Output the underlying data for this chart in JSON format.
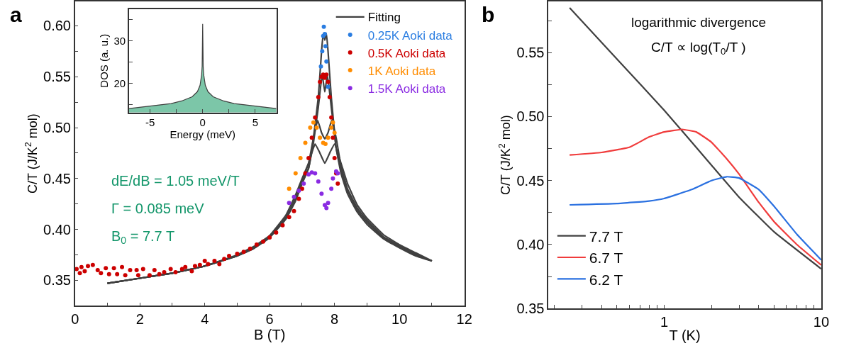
{
  "chart_data": [
    {
      "type": "scatter",
      "xlabel": "B (T)",
      "ylabel": "C/T (J/K$^{2}$ mol)",
      "annotations": [
        "a",
        "dE/dB = 1.05 meV/T",
        "Γ = 0.085 meV",
        "B$_{0}$ = 7.7 T"
      ],
      "xlim": [
        0,
        12
      ],
      "xticks": [
        0,
        {
          "value": 1,
          "label": null
        },
        2,
        {
          "value": 3,
          "label": null
        },
        4,
        {
          "value": 5,
          "label": null
        },
        6,
        {
          "value": 7,
          "label": null
        },
        8,
        {
          "value": 9,
          "label": null
        },
        10,
        {
          "value": 11,
          "label": null
        },
        12
      ],
      "ylim": [
        0.325,
        0.624
      ],
      "yticks": [
        {
          "value": 0.35,
          "label": "0.35"
        },
        {
          "value": 0.375,
          "label": null
        },
        {
          "value": 0.4,
          "label": "0.40"
        },
        {
          "value": 0.425,
          "label": null
        },
        {
          "value": 0.45,
          "label": "0.45"
        },
        {
          "value": 0.475,
          "label": null
        },
        {
          "value": 0.5,
          "label": "0.50"
        },
        {
          "value": 0.525,
          "label": null
        },
        {
          "value": 0.55,
          "label": "0.55"
        },
        {
          "value": 0.575,
          "label": null
        },
        {
          "value": 0.6,
          "label": "0.60"
        }
      ],
      "legend": "top right",
      "series": [
        {
          "name": "Fitting",
          "type": "line",
          "color": "#404040",
          "x": [
            1,
            2,
            3,
            4,
            5,
            5.5,
            6,
            6.5,
            6.8,
            7.0,
            7.2,
            7.35,
            7.5,
            7.6,
            7.65,
            7.7,
            7.75,
            7.8,
            7.9,
            8.05,
            8.2,
            8.4,
            8.7,
            9,
            9.5,
            10,
            10.5,
            11
          ],
          "values": [
            0.347,
            0.352,
            0.357,
            0.364,
            0.374,
            0.381,
            0.392,
            0.41,
            0.428,
            0.445,
            0.46,
            0.49,
            0.53,
            0.575,
            0.5925,
            0.586,
            0.5925,
            0.575,
            0.53,
            0.48,
            0.455,
            0.435,
            0.417,
            0.405,
            0.391,
            0.382,
            0.374,
            0.369
          ]
        },
        {
          "type": "line",
          "color": "#404040",
          "x": [
            1,
            2,
            3,
            4,
            5,
            5.5,
            6,
            6.5,
            6.8,
            7.0,
            7.2,
            7.35,
            7.5,
            7.62,
            7.7,
            7.78,
            7.9,
            8.05,
            8.2,
            8.4,
            8.7,
            9,
            9.5,
            10,
            10.5,
            11
          ],
          "values": [
            0.347,
            0.352,
            0.357,
            0.364,
            0.374,
            0.381,
            0.392,
            0.411,
            0.429,
            0.446,
            0.46,
            0.485,
            0.52,
            0.552,
            0.535,
            0.552,
            0.52,
            0.48,
            0.458,
            0.438,
            0.419,
            0.407,
            0.392,
            0.383,
            0.375,
            0.369
          ]
        },
        {
          "type": "line",
          "color": "#404040",
          "x": [
            1,
            2,
            3,
            4,
            5,
            5.5,
            6,
            6.5,
            6.8,
            7.0,
            7.2,
            7.35,
            7.48,
            7.6,
            7.7,
            7.8,
            7.91,
            8.05,
            8.2,
            8.4,
            8.7,
            9,
            9.5,
            10,
            10.5,
            11
          ],
          "values": [
            0.347,
            0.352,
            0.357,
            0.364,
            0.374,
            0.382,
            0.393,
            0.412,
            0.431,
            0.448,
            0.465,
            0.49,
            0.507,
            0.495,
            0.489,
            0.495,
            0.507,
            0.49,
            0.462,
            0.44,
            0.421,
            0.409,
            0.393,
            0.384,
            0.376,
            0.369
          ]
        },
        {
          "type": "line",
          "color": "#404040",
          "x": [
            1,
            2,
            3,
            4,
            5,
            5.5,
            6,
            6.5,
            6.8,
            7.0,
            7.2,
            7.4,
            7.55,
            7.7,
            7.85,
            8.0,
            8.2,
            8.4,
            8.7,
            9,
            9.5,
            10,
            10.5,
            11
          ],
          "values": [
            0.347,
            0.352,
            0.357,
            0.364,
            0.375,
            0.383,
            0.394,
            0.414,
            0.434,
            0.45,
            0.465,
            0.484,
            0.475,
            0.465,
            0.475,
            0.484,
            0.465,
            0.445,
            0.424,
            0.411,
            0.395,
            0.385,
            0.377,
            0.369
          ]
        },
        {
          "name": "0.25K Aoki data",
          "type": "scatter",
          "marker": "circle",
          "color": "#2a7de1",
          "x": [
            7.58,
            7.62,
            7.65,
            7.67,
            7.7,
            7.72,
            7.75,
            7.8
          ],
          "values": [
            0.56,
            0.575,
            0.59,
            0.599,
            0.592,
            0.58,
            0.565,
            0.54
          ]
        },
        {
          "name": "0.5K Aoki data",
          "type": "scatter",
          "marker": "circle",
          "color": "#cc0000",
          "x": [
            0.05,
            0.15,
            0.2,
            0.3,
            0.4,
            0.55,
            0.7,
            0.8,
            0.95,
            1.05,
            1.2,
            1.3,
            1.45,
            1.55,
            1.7,
            1.9,
            1.95,
            2.1,
            2.3,
            2.45,
            2.6,
            2.75,
            2.95,
            3.1,
            3.3,
            3.4,
            3.6,
            3.7,
            3.85,
            4.0,
            4.1,
            4.3,
            4.45,
            4.6,
            4.75,
            5.0,
            5.2,
            5.4,
            5.6,
            5.8,
            6.0,
            6.2,
            6.4,
            6.6,
            6.75,
            6.9,
            7.0,
            7.1,
            7.2,
            7.3,
            7.4,
            7.5,
            7.55,
            7.6,
            7.65,
            7.7,
            7.75,
            7.8,
            7.85,
            7.9,
            7.95,
            8.0,
            8.05,
            8.1
          ],
          "values": [
            0.361,
            0.357,
            0.363,
            0.359,
            0.364,
            0.365,
            0.36,
            0.357,
            0.362,
            0.356,
            0.362,
            0.356,
            0.363,
            0.355,
            0.36,
            0.36,
            0.355,
            0.361,
            0.355,
            0.36,
            0.356,
            0.358,
            0.361,
            0.358,
            0.361,
            0.363,
            0.359,
            0.364,
            0.365,
            0.369,
            0.366,
            0.369,
            0.366,
            0.371,
            0.374,
            0.376,
            0.378,
            0.381,
            0.385,
            0.388,
            0.392,
            0.397,
            0.404,
            0.412,
            0.418,
            0.43,
            0.44,
            0.455,
            0.47,
            0.49,
            0.51,
            0.53,
            0.545,
            0.55,
            0.552,
            0.549,
            0.552,
            0.545,
            0.53,
            0.51,
            0.49,
            0.47,
            0.455,
            0.445
          ]
        },
        {
          "name": "1K Aoki data",
          "type": "scatter",
          "marker": "circle",
          "color": "#ff8c00",
          "x": [
            6.6,
            6.8,
            6.95,
            7.1,
            7.25,
            7.35,
            7.45,
            7.55,
            7.65,
            7.72,
            7.8,
            7.9,
            7.95,
            8.0
          ],
          "values": [
            0.44,
            0.455,
            0.47,
            0.485,
            0.5,
            0.505,
            0.5,
            0.49,
            0.485,
            0.484,
            0.49,
            0.5,
            0.505,
            0.495
          ]
        },
        {
          "name": "1.5K Aoki data",
          "type": "scatter",
          "marker": "circle",
          "color": "#8a2be2",
          "x": [
            6.6,
            6.75,
            6.9,
            7.05,
            7.2,
            7.3,
            7.4,
            7.5,
            7.6,
            7.7,
            7.75,
            7.8,
            7.9,
            7.95,
            8.05,
            8.1
          ],
          "values": [
            0.426,
            0.432,
            0.438,
            0.445,
            0.454,
            0.456,
            0.455,
            0.447,
            0.435,
            0.424,
            0.421,
            0.426,
            0.44,
            0.45,
            0.457,
            0.455
          ]
        }
      ]
    },
    {
      "type": "area",
      "xlabel": "Energy (meV)",
      "ylabel": "DOS (a. u.)",
      "xlim": [
        -7,
        7
      ],
      "xticks": [
        -5,
        {
          "value": -2.5,
          "label": null
        },
        0,
        {
          "value": 2.5,
          "label": null
        },
        5
      ],
      "ylim": [
        13.1,
        37.5
      ],
      "yticks": [
        {
          "value": 15,
          "label": null
        },
        20,
        {
          "value": 25,
          "label": null
        },
        30,
        {
          "value": 35,
          "label": null
        }
      ],
      "series": [
        {
          "color": "#7cc6a8",
          "x": [
            -7,
            -5,
            -3,
            -2,
            -1,
            -0.5,
            -0.25,
            -0.1,
            -0.05,
            0,
            0.05,
            0.1,
            0.25,
            0.5,
            1,
            2,
            3,
            5,
            7
          ],
          "values": [
            14.0,
            14.6,
            15.2,
            15.8,
            16.8,
            18,
            19.5,
            22,
            24,
            34,
            24,
            22,
            19.5,
            18,
            16.8,
            15.8,
            15.2,
            14.6,
            14.0
          ]
        }
      ]
    },
    {
      "type": "line",
      "xlabel": "T (K)",
      "ylabel": "C/T (J/K$^{2}$ mol)",
      "annotations": [
        "b",
        "logarithmic divergence",
        "C/T ∝ log(T$_{0}$/T )"
      ],
      "log": "x",
      "xlim": [
        0.183,
        10
      ],
      "xticks": [
        {
          "value": 0.2,
          "label": null
        },
        {
          "value": 0.3,
          "label": null
        },
        {
          "value": 0.4,
          "label": null
        },
        {
          "value": 0.5,
          "label": null
        },
        {
          "value": 0.6,
          "label": null
        },
        {
          "value": 0.7,
          "label": null
        },
        {
          "value": 0.8,
          "label": null
        },
        {
          "value": 0.9,
          "label": null
        },
        1,
        {
          "value": 2,
          "label": null
        },
        {
          "value": 3,
          "label": null
        },
        {
          "value": 4,
          "label": null
        },
        {
          "value": 5,
          "label": null
        },
        {
          "value": 6,
          "label": null
        },
        {
          "value": 7,
          "label": null
        },
        {
          "value": 8,
          "label": null
        },
        {
          "value": 9,
          "label": null
        },
        10
      ],
      "ylim": [
        0.35,
        0.59
      ],
      "yticks": [
        {
          "value": 0.35,
          "label": "0.35"
        },
        {
          "value": 0.375,
          "label": null
        },
        {
          "value": 0.4,
          "label": "0.40"
        },
        {
          "value": 0.425,
          "label": null
        },
        {
          "value": 0.45,
          "label": "0.45"
        },
        {
          "value": 0.475,
          "label": null
        },
        {
          "value": 0.5,
          "label": "0.50"
        },
        {
          "value": 0.525,
          "label": null
        },
        {
          "value": 0.55,
          "label": "0.55"
        },
        {
          "value": 0.575,
          "label": null
        }
      ],
      "legend": "bottom left",
      "series": [
        {
          "name": "7.7 T",
          "color": "#404040",
          "x": [
            0.25,
            0.5,
            1,
            2,
            3,
            5,
            10
          ],
          "values": [
            0.585,
            0.545,
            0.505,
            0.462,
            0.437,
            0.41,
            0.381
          ]
        },
        {
          "name": "6.7 T",
          "color": "#f03c3c",
          "x": [
            0.25,
            0.4,
            0.6,
            0.8,
            1.0,
            1.3,
            1.6,
            2,
            2.5,
            3,
            4,
            5,
            7,
            10
          ],
          "values": [
            0.47,
            0.472,
            0.476,
            0.484,
            0.488,
            0.49,
            0.488,
            0.48,
            0.467,
            0.455,
            0.433,
            0.418,
            0.4,
            0.384
          ]
        },
        {
          "name": "6.2 T",
          "color": "#2a70e0",
          "x": [
            0.25,
            0.5,
            0.8,
            1,
            1.5,
            2,
            2.5,
            3,
            4,
            5,
            7,
            10
          ],
          "values": [
            0.431,
            0.432,
            0.434,
            0.436,
            0.443,
            0.45,
            0.453,
            0.452,
            0.443,
            0.43,
            0.408,
            0.388
          ]
        }
      ]
    }
  ]
}
